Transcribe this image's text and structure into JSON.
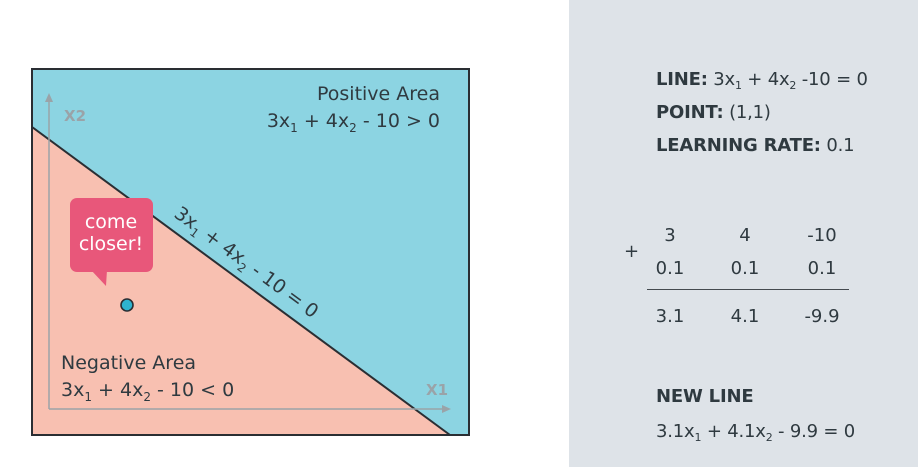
{
  "diagram": {
    "axis_y_label": "X2",
    "axis_x_label": "X1",
    "positive_area": {
      "title": "Positive Area",
      "eq_a": "3x",
      "eq_sub1": "1",
      "eq_b": " + 4x",
      "eq_sub2": "2",
      "eq_c": " - 10 > 0"
    },
    "negative_area": {
      "title": "Negative Area",
      "eq_a": "3x",
      "eq_sub1": "1",
      "eq_b": " + 4x",
      "eq_sub2": "2",
      "eq_c": " - 10 < 0"
    },
    "line_label": {
      "a": "3x",
      "sub1": "1",
      "b": " + 4x",
      "sub2": "2",
      "c": " - 10 = 0"
    },
    "bubble": {
      "line1": "come",
      "line2": "closer!"
    },
    "colors": {
      "positive": "#8cd4e2",
      "negative": "#f8c0b1",
      "bubble": "#e8577a",
      "point": "#2fb3cf"
    }
  },
  "panel": {
    "line": {
      "label": "LINE:",
      "a": " 3x",
      "sub1": "1",
      "b": " + 4x",
      "sub2": "2",
      "c": " -10 = 0"
    },
    "point": {
      "label": "POINT:",
      "value": " (1,1)"
    },
    "rate": {
      "label": "LEARNING RATE:",
      "value": " 0.1"
    },
    "plus": "+",
    "row1": [
      "3",
      "4",
      "-10"
    ],
    "row2": [
      "0.1",
      "0.1",
      "0.1"
    ],
    "result": [
      "3.1",
      "4.1",
      "-9.9"
    ],
    "new_line": {
      "label": "NEW LINE",
      "a": "3.1x",
      "sub1": "1",
      "b": " + 4.1x",
      "sub2": "2",
      "c": " - 9.9 = 0"
    }
  }
}
